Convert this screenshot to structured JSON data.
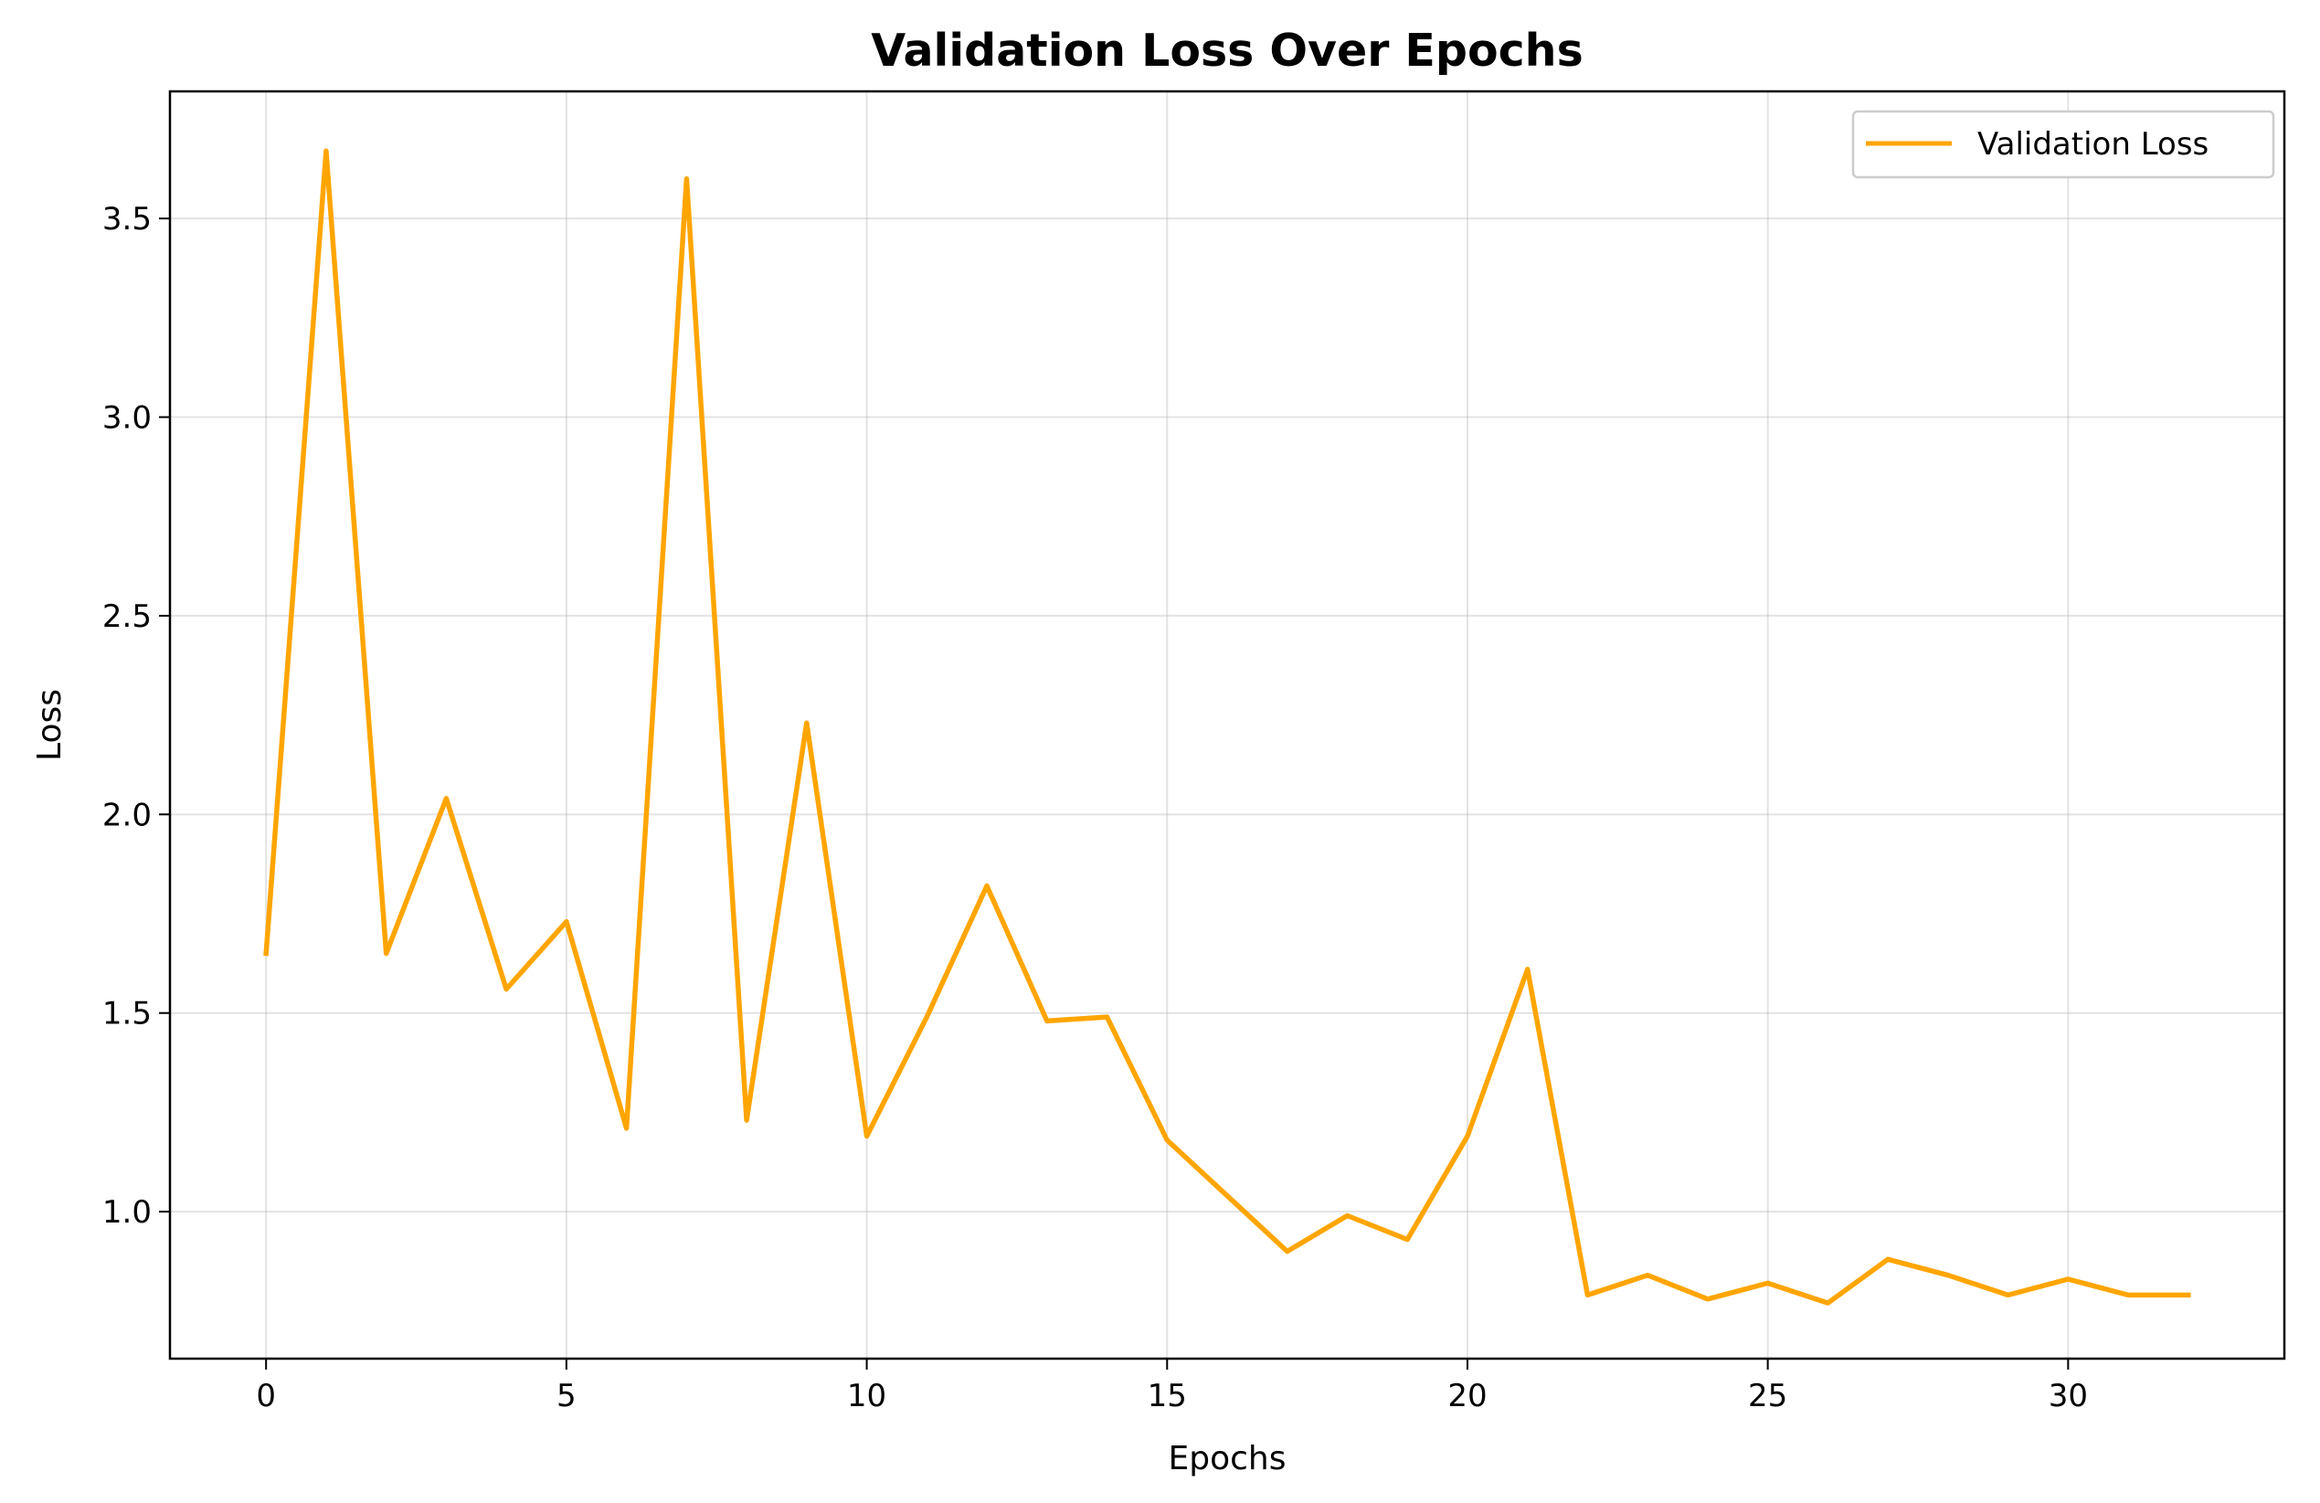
{
  "chart_data": {
    "type": "line",
    "title": "Validation Loss Over Epochs",
    "xlabel": "Epochs",
    "ylabel": "Loss",
    "xlim": [
      -1.6,
      33.6
    ],
    "ylim": [
      0.63,
      3.82
    ],
    "xticks": [
      0,
      5,
      10,
      15,
      20,
      25,
      30
    ],
    "xtick_labels": [
      "0",
      "5",
      "10",
      "15",
      "20",
      "25",
      "30"
    ],
    "yticks": [
      1.0,
      1.5,
      2.0,
      2.5,
      3.0,
      3.5
    ],
    "ytick_labels": [
      "1.0",
      "1.5",
      "2.0",
      "2.5",
      "3.0",
      "3.5"
    ],
    "grid": true,
    "legend_position": "top-right",
    "series": [
      {
        "name": "Validation Loss",
        "color": "#FFA500",
        "x": [
          0,
          1,
          2,
          3,
          4,
          5,
          6,
          7,
          8,
          9,
          10,
          11,
          12,
          13,
          14,
          15,
          16,
          17,
          18,
          19,
          20,
          21,
          22,
          23,
          24,
          25,
          26,
          27,
          28,
          29,
          30,
          31,
          32
        ],
        "y": [
          1.65,
          3.67,
          1.65,
          2.04,
          1.56,
          1.73,
          1.21,
          3.6,
          1.23,
          2.23,
          1.19,
          1.49,
          1.82,
          1.48,
          1.49,
          1.18,
          1.04,
          0.9,
          0.99,
          0.93,
          1.19,
          1.61,
          0.79,
          0.84,
          0.78,
          0.82,
          0.77,
          0.88,
          0.84,
          0.79,
          0.83,
          0.79,
          0.79
        ]
      }
    ]
  }
}
